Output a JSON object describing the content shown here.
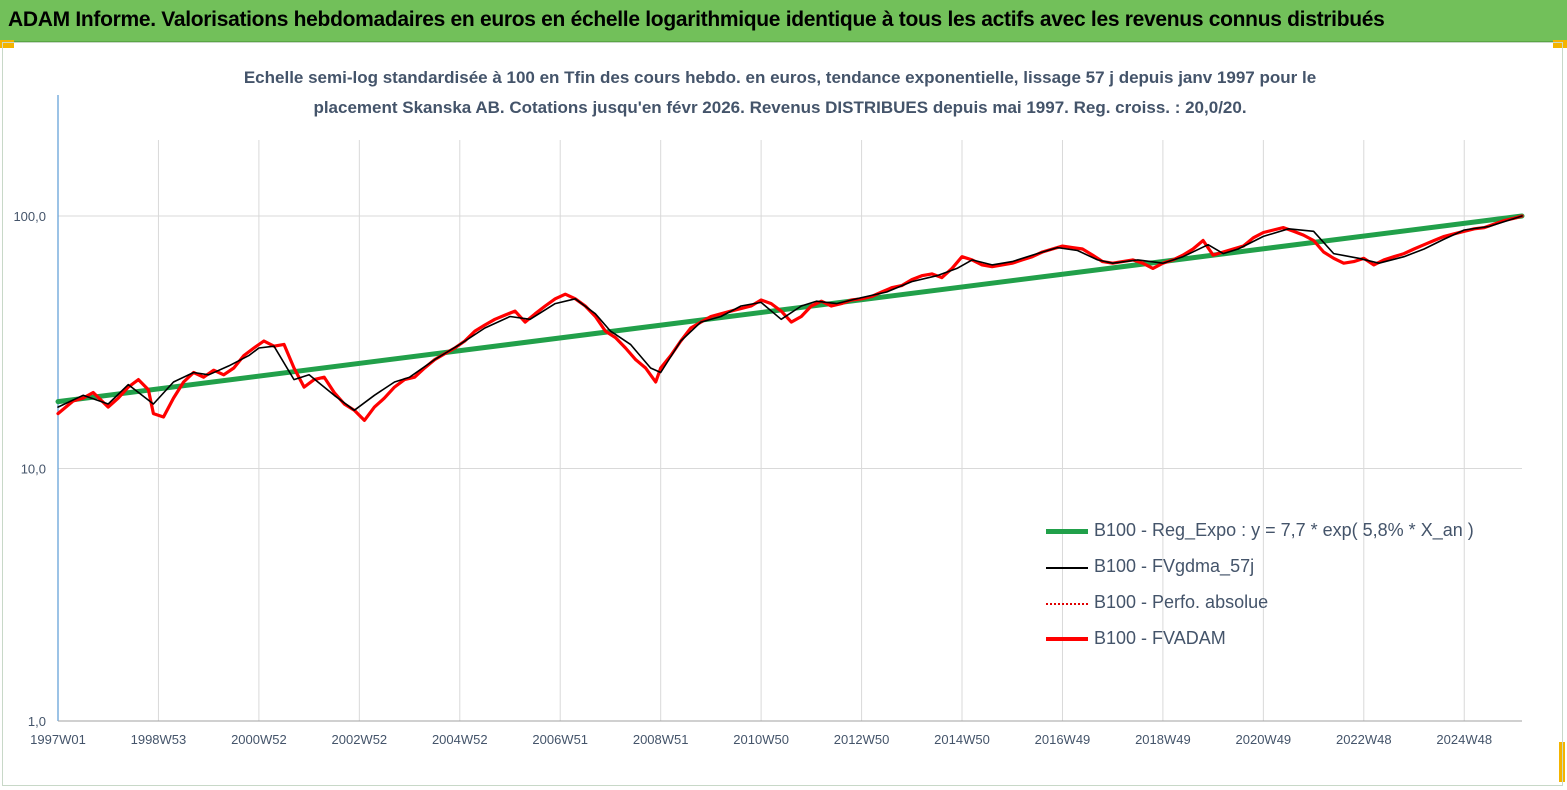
{
  "header": {
    "title": "ADAM Informe. Valorisations hebdomadaires en euros en échelle logarithmique identique à tous les actifs avec les revenus connus distribués"
  },
  "chart_data": {
    "type": "line",
    "title_line1": "Echelle semi-log standardisée à 100 en Tfin des cours hebdo. en euros, tendance exponentielle, lissage 57 j depuis janv 1997 pour le",
    "title_line2": "placement Skanska AB. Cotations jusqu'en févr 2026. Revenus DISTRIBUES depuis mai 1997. Reg. croiss. : 20,0/20.",
    "y_scale": "log",
    "ylim": [
      1,
      200
    ],
    "y_ticks": [
      1,
      10,
      100
    ],
    "y_tick_labels": [
      "1,0",
      "10,0",
      "100,0"
    ],
    "xlim": [
      1997.0,
      2026.15
    ],
    "x_tick_labels": [
      "1997W01",
      "1998W53",
      "2000W52",
      "2002W52",
      "2004W52",
      "2006W51",
      "2008W51",
      "2010W50",
      "2012W50",
      "2014W50",
      "2016W49",
      "2018W49",
      "2020W49",
      "2022W48",
      "2024W48"
    ],
    "x_tick_positions": [
      1997.0,
      1999.0,
      2001.0,
      2003.0,
      2005.0,
      2007.0,
      2009.0,
      2011.0,
      2013.0,
      2015.0,
      2017.0,
      2019.0,
      2021.0,
      2023.0,
      2025.0
    ],
    "grid": "vertical",
    "legend_position": "right",
    "series": [
      {
        "name": "B100 - Reg_Expo : y = 7,7 * exp( 5,8% *  X_an )",
        "color": "#21a04a",
        "style": "thick",
        "x": [
          1997.0,
          2026.15
        ],
        "y": [
          18.4,
          100
        ]
      },
      {
        "name": "B100 - FVgdma_57j",
        "color": "#000000",
        "style": "thin",
        "x": [
          1997.0,
          1997.5,
          1998.0,
          1998.4,
          1998.9,
          1999.3,
          1999.7,
          2000.0,
          2000.4,
          2000.8,
          2001.0,
          2001.3,
          2001.7,
          2002.0,
          2002.5,
          2002.9,
          2003.3,
          2003.7,
          2004.0,
          2004.5,
          2005.0,
          2005.5,
          2006.0,
          2006.4,
          2006.9,
          2007.3,
          2007.7,
          2008.0,
          2008.4,
          2008.8,
          2009.0,
          2009.4,
          2009.8,
          2010.2,
          2010.6,
          2011.0,
          2011.4,
          2011.8,
          2012.1,
          2012.5,
          2013.0,
          2013.5,
          2014.0,
          2014.5,
          2014.9,
          2015.2,
          2015.6,
          2016.0,
          2016.5,
          2016.9,
          2017.3,
          2017.7,
          2018.0,
          2018.5,
          2019.0,
          2019.4,
          2019.9,
          2020.2,
          2020.5,
          2021.0,
          2021.5,
          2022.0,
          2022.4,
          2022.9,
          2023.3,
          2023.8,
          2024.2,
          2024.6,
          2025.0,
          2025.5,
          2026.15
        ],
        "y": [
          17.5,
          19.5,
          18.0,
          21.5,
          18.0,
          22.0,
          24.0,
          23.5,
          25.5,
          28.0,
          30.0,
          30.5,
          22.5,
          23.5,
          19.5,
          17.0,
          19.5,
          22.0,
          23.0,
          27.0,
          31.0,
          36.0,
          40.0,
          39.0,
          45.0,
          47.0,
          41.0,
          35.0,
          31.0,
          25.0,
          24.0,
          32.0,
          38.0,
          40.0,
          44.0,
          45.5,
          39.0,
          44.0,
          46.0,
          45.0,
          47.5,
          50.0,
          55.0,
          58.0,
          62.0,
          67.0,
          64.0,
          66.0,
          71.0,
          75.0,
          73.0,
          67.0,
          65.0,
          67.0,
          65.0,
          69.0,
          77.0,
          71.0,
          74.0,
          83.0,
          89.0,
          87.0,
          71.0,
          68.0,
          65.0,
          69.0,
          74.0,
          81.0,
          88.0,
          91.0,
          100.0
        ]
      },
      {
        "name": "B100 - Perfo. absolue",
        "color": "#e00000",
        "style": "dotted"
      },
      {
        "name": "B100 - FVADAM",
        "color": "#ff0000",
        "style": "thick",
        "x": [
          1997.0,
          1997.3,
          1997.5,
          1997.7,
          1998.0,
          1998.2,
          1998.4,
          1998.6,
          1998.8,
          1998.9,
          1999.1,
          1999.3,
          1999.5,
          1999.7,
          1999.9,
          2000.1,
          2000.3,
          2000.5,
          2000.7,
          2000.9,
          2001.1,
          2001.3,
          2001.5,
          2001.7,
          2001.9,
          2002.1,
          2002.3,
          2002.5,
          2002.7,
          2002.9,
          2003.1,
          2003.3,
          2003.5,
          2003.7,
          2003.9,
          2004.1,
          2004.3,
          2004.5,
          2004.7,
          2004.9,
          2005.1,
          2005.3,
          2005.5,
          2005.7,
          2005.9,
          2006.1,
          2006.3,
          2006.5,
          2006.7,
          2006.9,
          2007.1,
          2007.3,
          2007.5,
          2007.7,
          2007.9,
          2008.1,
          2008.3,
          2008.5,
          2008.7,
          2008.9,
          2009.0,
          2009.2,
          2009.4,
          2009.6,
          2009.8,
          2010.0,
          2010.2,
          2010.4,
          2010.6,
          2010.8,
          2011.0,
          2011.2,
          2011.4,
          2011.6,
          2011.8,
          2012.0,
          2012.2,
          2012.4,
          2012.6,
          2012.8,
          2013.0,
          2013.2,
          2013.4,
          2013.6,
          2013.8,
          2014.0,
          2014.2,
          2014.4,
          2014.6,
          2014.8,
          2015.0,
          2015.2,
          2015.4,
          2015.6,
          2015.8,
          2016.0,
          2016.2,
          2016.4,
          2016.6,
          2016.8,
          2017.0,
          2017.2,
          2017.4,
          2017.6,
          2017.8,
          2018.0,
          2018.2,
          2018.4,
          2018.6,
          2018.8,
          2019.0,
          2019.2,
          2019.4,
          2019.6,
          2019.8,
          2020.0,
          2020.2,
          2020.4,
          2020.6,
          2020.8,
          2021.0,
          2021.2,
          2021.4,
          2021.6,
          2021.8,
          2022.0,
          2022.2,
          2022.4,
          2022.6,
          2022.8,
          2023.0,
          2023.2,
          2023.4,
          2023.6,
          2023.8,
          2024.0,
          2024.2,
          2024.4,
          2024.6,
          2024.8,
          2025.0,
          2025.2,
          2025.4,
          2025.6,
          2025.8,
          2026.0,
          2026.15
        ],
        "y": [
          16.5,
          18.5,
          19.0,
          20.0,
          17.5,
          19.0,
          21.0,
          22.5,
          20.5,
          16.5,
          16.0,
          19.0,
          22.0,
          24.0,
          23.0,
          24.5,
          23.5,
          25.0,
          28.0,
          30.0,
          32.0,
          30.5,
          31.0,
          25.0,
          21.0,
          22.5,
          23.0,
          20.0,
          18.0,
          17.0,
          15.5,
          17.5,
          19.0,
          21.0,
          22.5,
          23.0,
          25.0,
          27.0,
          28.5,
          30.0,
          32.0,
          35.0,
          37.0,
          39.0,
          40.5,
          42.0,
          38.0,
          41.0,
          44.0,
          47.0,
          49.0,
          47.0,
          44.0,
          40.0,
          35.0,
          33.0,
          30.0,
          27.0,
          25.0,
          22.0,
          25.0,
          28.0,
          32.0,
          36.0,
          38.0,
          40.0,
          41.0,
          42.0,
          43.0,
          44.0,
          46.5,
          45.0,
          42.0,
          38.0,
          40.0,
          44.0,
          46.0,
          44.0,
          45.0,
          46.5,
          47.0,
          48.0,
          50.0,
          52.0,
          53.0,
          56.0,
          58.0,
          59.0,
          57.0,
          62.0,
          69.0,
          67.0,
          64.0,
          63.0,
          64.0,
          65.0,
          67.0,
          69.0,
          72.0,
          74.0,
          76.0,
          75.0,
          74.0,
          70.0,
          66.0,
          65.0,
          66.0,
          67.0,
          65.0,
          62.0,
          65.0,
          67.0,
          70.0,
          74.0,
          80.0,
          70.0,
          72.0,
          74.0,
          76.0,
          82.0,
          86.0,
          88.0,
          90.0,
          87.0,
          84.0,
          80.0,
          72.0,
          68.0,
          65.0,
          66.0,
          68.0,
          64.0,
          67.0,
          69.0,
          71.0,
          74.0,
          77.0,
          80.0,
          83.0,
          85.0,
          87.0,
          89.0,
          90.0,
          93.0,
          96.0,
          98.0,
          100.0
        ]
      }
    ]
  }
}
